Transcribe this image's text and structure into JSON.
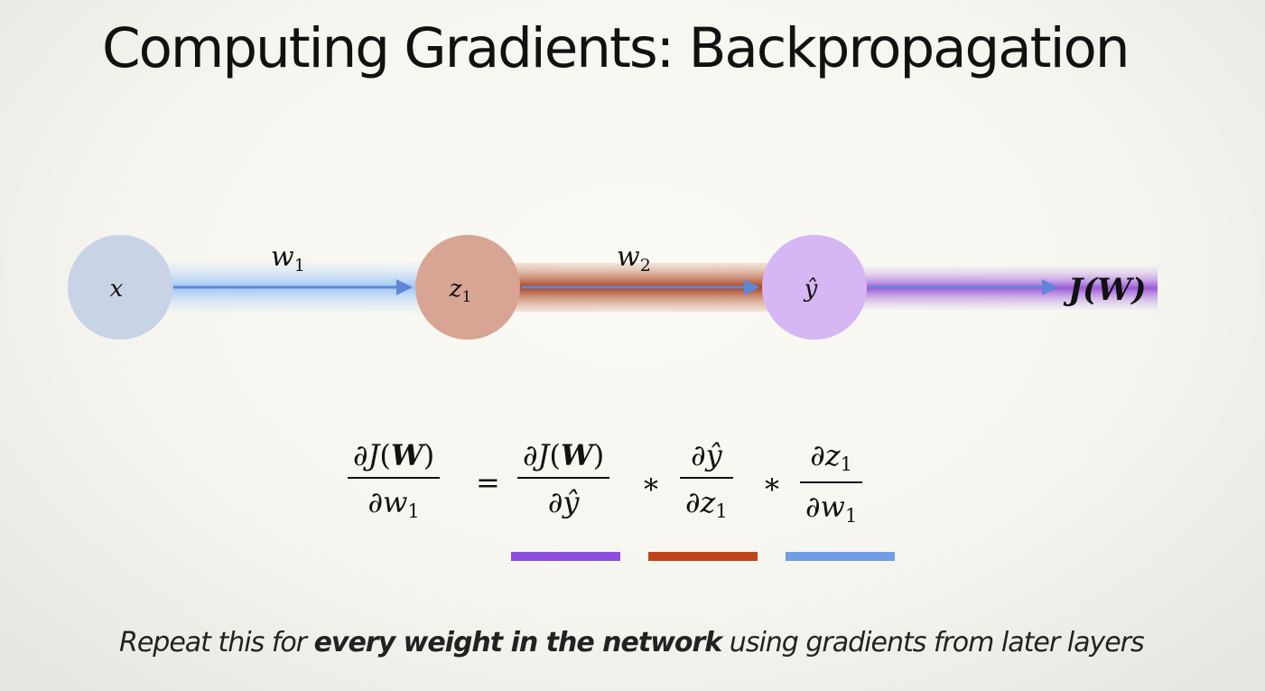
{
  "slide": {
    "title": "Computing Gradients: Backpropagation",
    "caption_before": "Repeat this for ",
    "caption_bold": "every weight in the network",
    "caption_after": " using gradients from later layers"
  },
  "network": {
    "nodes": [
      {
        "id": "x",
        "label": "x",
        "color": "#c8d3e6"
      },
      {
        "id": "z1",
        "label": "z",
        "sub": "1",
        "color": "#d8a494"
      },
      {
        "id": "yhat",
        "label": "ŷ",
        "color": "#d7b7f3"
      }
    ],
    "edges": [
      {
        "label": "w",
        "sub": "1",
        "glow": "#9ec6f5",
        "line": "#5f86d8"
      },
      {
        "label": "w",
        "sub": "2",
        "glow": "#a9401c",
        "line": "#5f86d8"
      },
      {
        "label": "",
        "glow": "#9b5ad6",
        "line": "#5f86d8"
      }
    ],
    "output_label": "J(W)"
  },
  "equation": {
    "lhs_num": "∂J(W)",
    "lhs_den": "∂w1",
    "equals": "=",
    "times": "*",
    "terms": [
      {
        "num": "∂J(W)",
        "den": "∂ŷ",
        "bar_color": "#8e4fe0"
      },
      {
        "num": "∂ŷ",
        "den": "∂z1",
        "bar_color": "#c0461a"
      },
      {
        "num": "∂z1",
        "den": "∂w1",
        "bar_color": "#6f9ee6"
      }
    ]
  }
}
